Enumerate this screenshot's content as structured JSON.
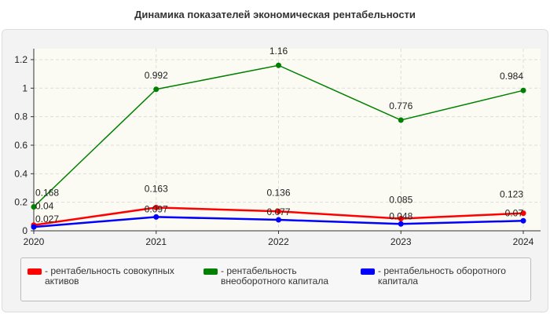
{
  "chart_data": {
    "type": "line",
    "title": "Динамика показателей экономическая рентабельности",
    "categories": [
      "2020",
      "2021",
      "2022",
      "2023",
      "2024"
    ],
    "ylim": [
      0,
      1.25
    ],
    "yticks": [
      "0",
      "0.2",
      "0.4",
      "0.6",
      "0.8",
      "1",
      "1.2"
    ],
    "grid": true,
    "legend_position": "bottom",
    "series": [
      {
        "name": "- рентабельность совокупных активов",
        "color": "#ff0000",
        "values": [
          0.04,
          0.163,
          0.136,
          0.085,
          0.123
        ]
      },
      {
        "name": "- рентабельность внеоборотного капитала",
        "color": "#008000",
        "values": [
          0.168,
          0.992,
          1.16,
          0.776,
          0.984
        ]
      },
      {
        "name": "- рентабельность оборотного капитала",
        "color": "#0000ff",
        "values": [
          0.027,
          0.097,
          0.077,
          0.048,
          0.07
        ]
      }
    ]
  }
}
